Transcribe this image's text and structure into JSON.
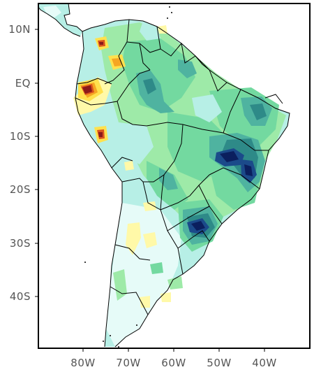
{
  "map": {
    "latitude_labels": [
      "10N",
      "EQ",
      "10S",
      "20S",
      "30S",
      "40S"
    ],
    "longitude_labels": [
      "80W",
      "70W",
      "60W",
      "50W",
      "40W"
    ],
    "colors": {
      "ocean": "#ffffff",
      "very_light_cyan": "#e6fbf8",
      "light_cyan": "#b7efe6",
      "light_green": "#9eeaa8",
      "green": "#73d9a0",
      "teal": "#4fb3a0",
      "dark_teal": "#2e8a88",
      "blue": "#1b4a8a",
      "navy": "#0b1f5e",
      "light_yellow": "#fff9a8",
      "yellow": "#ffe14d",
      "orange": "#f5a623",
      "red_orange": "#d9531e",
      "dark_red": "#8b1a1a",
      "boundary": "#000000"
    }
  }
}
